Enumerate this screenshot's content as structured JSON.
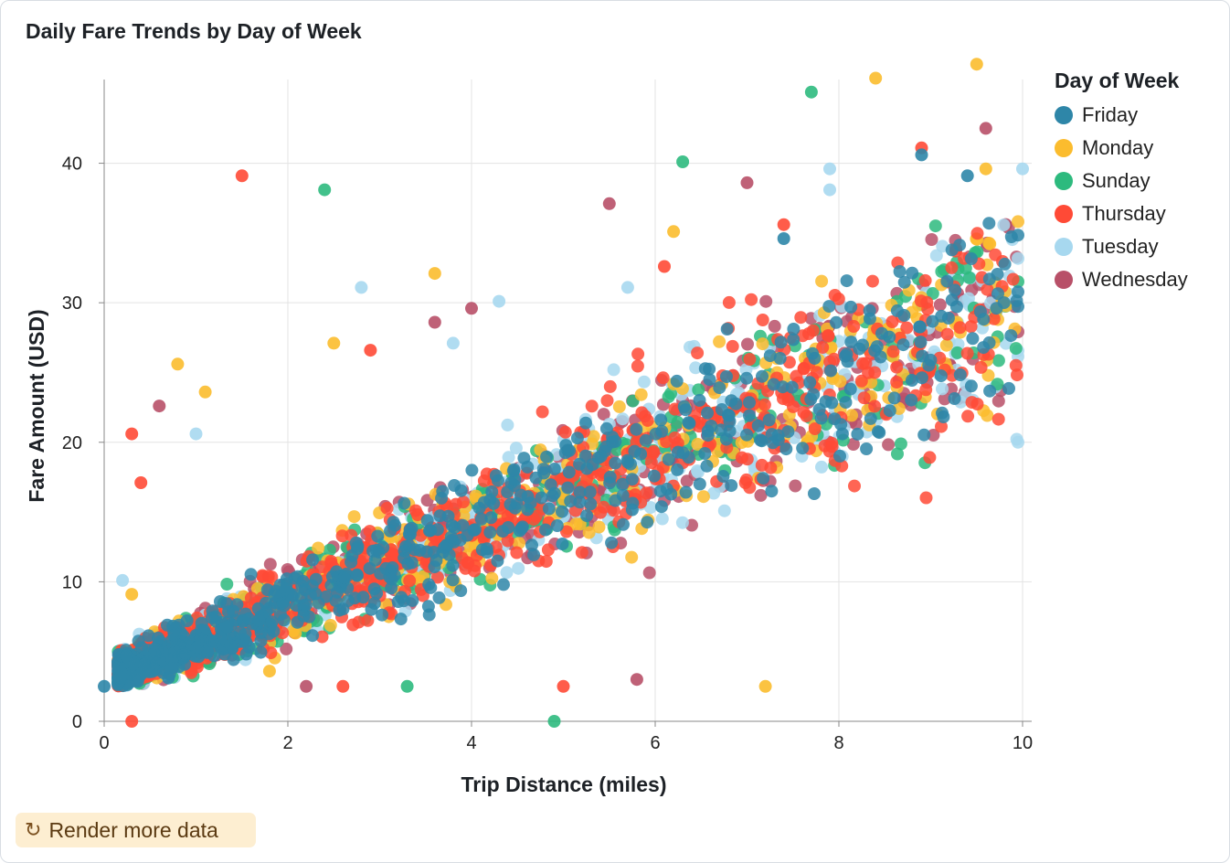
{
  "chart_data": {
    "type": "scatter",
    "title": "Daily Fare Trends by Day of Week",
    "xlabel": "Trip Distance (miles)",
    "ylabel": "Fare Amount (USD)",
    "xlim": [
      0,
      10
    ],
    "ylim": [
      0,
      46
    ],
    "xticks": [
      "0",
      "2",
      "4",
      "6",
      "8",
      "10"
    ],
    "yticks": [
      "0",
      "10",
      "20",
      "30",
      "40"
    ],
    "grid": true,
    "legend_title": "Day of Week",
    "legend_position": "right",
    "series": [
      {
        "name": "Friday",
        "color": "#2e86a8"
      },
      {
        "name": "Monday",
        "color": "#fbbc2e"
      },
      {
        "name": "Sunday",
        "color": "#2dba7e"
      },
      {
        "name": "Thursday",
        "color": "#ff4a36"
      },
      {
        "name": "Tuesday",
        "color": "#a7d8ef"
      },
      {
        "name": "Wednesday",
        "color": "#b85068"
      }
    ],
    "fare_model": {
      "base_fare": 2.5,
      "per_mile": 2.7
    },
    "outliers": [
      {
        "series": "Monday",
        "x": 9.5,
        "y": 47.1
      },
      {
        "series": "Monday",
        "x": 8.4,
        "y": 46.1
      },
      {
        "series": "Sunday",
        "x": 7.7,
        "y": 45.1
      },
      {
        "series": "Wednesday",
        "x": 9.6,
        "y": 42.5
      },
      {
        "series": "Thursday",
        "x": 8.9,
        "y": 41.1
      },
      {
        "series": "Friday",
        "x": 8.9,
        "y": 40.6
      },
      {
        "series": "Sunday",
        "x": 6.3,
        "y": 40.1
      },
      {
        "series": "Tuesday",
        "x": 10.0,
        "y": 39.6
      },
      {
        "series": "Tuesday",
        "x": 7.9,
        "y": 39.6
      },
      {
        "series": "Friday",
        "x": 9.4,
        "y": 39.1
      },
      {
        "series": "Monday",
        "x": 9.6,
        "y": 39.6
      },
      {
        "series": "Thursday",
        "x": 1.5,
        "y": 39.1
      },
      {
        "series": "Sunday",
        "x": 2.4,
        "y": 38.1
      },
      {
        "series": "Wednesday",
        "x": 7.0,
        "y": 38.6
      },
      {
        "series": "Tuesday",
        "x": 7.9,
        "y": 38.1
      },
      {
        "series": "Wednesday",
        "x": 5.5,
        "y": 37.1
      },
      {
        "series": "Monday",
        "x": 6.2,
        "y": 35.1
      },
      {
        "series": "Thursday",
        "x": 7.4,
        "y": 35.6
      },
      {
        "series": "Friday",
        "x": 7.4,
        "y": 34.6
      },
      {
        "series": "Monday",
        "x": 3.6,
        "y": 32.1
      },
      {
        "series": "Tuesday",
        "x": 2.8,
        "y": 31.1
      },
      {
        "series": "Tuesday",
        "x": 5.7,
        "y": 31.1
      },
      {
        "series": "Thursday",
        "x": 6.1,
        "y": 32.6
      },
      {
        "series": "Tuesday",
        "x": 4.3,
        "y": 30.1
      },
      {
        "series": "Wednesday",
        "x": 4.0,
        "y": 29.6
      },
      {
        "series": "Monday",
        "x": 2.5,
        "y": 27.1
      },
      {
        "series": "Thursday",
        "x": 2.9,
        "y": 26.6
      },
      {
        "series": "Tuesday",
        "x": 3.8,
        "y": 27.1
      },
      {
        "series": "Wednesday",
        "x": 3.6,
        "y": 28.6
      },
      {
        "series": "Monday",
        "x": 0.8,
        "y": 25.6
      },
      {
        "series": "Monday",
        "x": 1.1,
        "y": 23.6
      },
      {
        "series": "Wednesday",
        "x": 0.6,
        "y": 22.6
      },
      {
        "series": "Tuesday",
        "x": 1.0,
        "y": 20.6
      },
      {
        "series": "Thursday",
        "x": 0.3,
        "y": 20.6
      },
      {
        "series": "Thursday",
        "x": 0.4,
        "y": 17.1
      },
      {
        "series": "Tuesday",
        "x": 0.2,
        "y": 10.1
      },
      {
        "series": "Monday",
        "x": 0.3,
        "y": 9.1
      },
      {
        "series": "Monday",
        "x": 1.8,
        "y": 3.6
      },
      {
        "series": "Friday",
        "x": 0.7,
        "y": 3.1
      },
      {
        "series": "Wednesday",
        "x": 2.2,
        "y": 2.5
      },
      {
        "series": "Thursday",
        "x": 2.6,
        "y": 2.5
      },
      {
        "series": "Sunday",
        "x": 3.3,
        "y": 2.5
      },
      {
        "series": "Thursday",
        "x": 5.0,
        "y": 2.5
      },
      {
        "series": "Wednesday",
        "x": 5.8,
        "y": 3.0
      },
      {
        "series": "Monday",
        "x": 7.2,
        "y": 2.5
      },
      {
        "series": "Sunday",
        "x": 4.9,
        "y": 0.0
      },
      {
        "series": "Thursday",
        "x": 0.3,
        "y": 0.0
      },
      {
        "series": "Friday",
        "x": 0.0,
        "y": 2.5
      }
    ]
  },
  "controls": {
    "render_more_label": "Render more data",
    "render_more_icon": "refresh-icon"
  }
}
